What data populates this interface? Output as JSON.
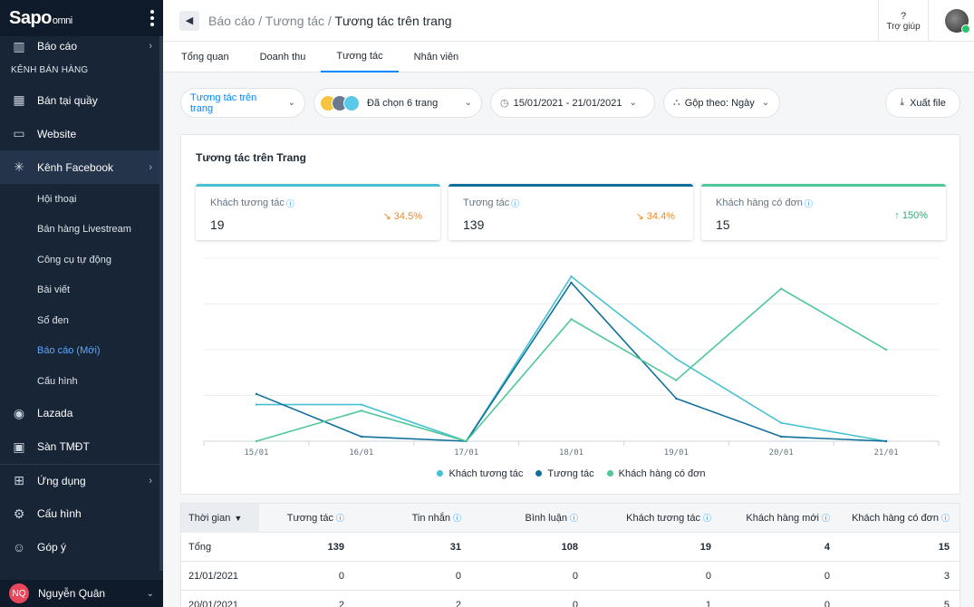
{
  "sidebar": {
    "logo": "Sapo",
    "logo_sub": "omni",
    "top_item": "Báo cáo",
    "section_label": "KÊNH BÁN HÀNG",
    "items": [
      {
        "label": "Bán tại quầy",
        "icon": "store-icon"
      },
      {
        "label": "Website",
        "icon": "monitor-icon"
      },
      {
        "label": "Kênh Facebook",
        "icon": "network-icon"
      }
    ],
    "facebook_sub": [
      "Hội thoại",
      "Bán hàng Livestream",
      "Công cụ tự động",
      "Bài viết",
      "Sổ đen",
      "Báo cáo (Mới)",
      "Cấu hình"
    ],
    "bottom_items": [
      {
        "label": "Lazada",
        "icon": "lazada-icon"
      },
      {
        "label": "Sàn TMĐT",
        "icon": "cart-icon"
      },
      {
        "label": "Ứng dụng",
        "icon": "apps-icon"
      },
      {
        "label": "Cấu hình",
        "icon": "gear-icon"
      },
      {
        "label": "Góp ý",
        "icon": "feedback-icon"
      }
    ],
    "user_initials": "NQ",
    "user_name": "Nguyễn Quân"
  },
  "topbar": {
    "breadcrumb_1": "Báo cáo",
    "sep": " / ",
    "breadcrumb_2": "Tương tác",
    "breadcrumb_3": "Tương tác trên trang",
    "help_icon": "?",
    "help_label": "Trợ giúp"
  },
  "tabs": [
    "Tổng quan",
    "Doanh thu",
    "Tương tác",
    "Nhân viên"
  ],
  "filters": {
    "type": "Tương tác trên trang",
    "pages": "Đã chọn 6 trang",
    "date": "15/01/2021 - 21/01/2021",
    "group": "Gộp theo: Ngày",
    "export": "Xuất file"
  },
  "card": {
    "title": "Tương tác trên Trang",
    "kpis": [
      {
        "label": "Khách tương tác",
        "value": "19",
        "change": "↘ 34.5%",
        "dir": "down",
        "color": "#47c1d1"
      },
      {
        "label": "Tương tác",
        "value": "139",
        "change": "↘ 34.4%",
        "dir": "down",
        "color": "#0f6f9a"
      },
      {
        "label": "Khách hàng có đơn",
        "value": "15",
        "change": "↑ 150%",
        "dir": "up",
        "color": "#4fc79a"
      }
    ]
  },
  "chart_data": {
    "type": "line",
    "categories": [
      "15/01",
      "16/01",
      "17/01",
      "18/01",
      "19/01",
      "20/01",
      "21/01"
    ],
    "series": [
      {
        "name": "Khách tương tác",
        "color": "#47c1d1",
        "values": [
          2.4,
          2.4,
          0,
          10.8,
          5.4,
          1.2,
          0
        ]
      },
      {
        "name": "Tương tác",
        "color": "#0f6f9a",
        "values": [
          3.1,
          0.3,
          0,
          10.4,
          2.8,
          0.3,
          0
        ]
      },
      {
        "name": "Khách hàng có đơn",
        "color": "#4fc79a",
        "values": [
          0,
          2.0,
          0,
          8.0,
          4.0,
          10.0,
          6.0
        ]
      }
    ],
    "ylim": [
      0,
      12
    ],
    "grid": true,
    "legend": "bottom"
  },
  "table": {
    "headers": [
      "Thời gian",
      "Tương tác",
      "Tin nhắn",
      "Bình luận",
      "Khách tương tác",
      "Khách hàng mới",
      "Khách hàng có đơn"
    ],
    "rows": [
      [
        "Tổng",
        "139",
        "31",
        "108",
        "19",
        "4",
        "15"
      ],
      [
        "21/01/2021",
        "0",
        "0",
        "0",
        "0",
        "0",
        "3"
      ],
      [
        "20/01/2021",
        "2",
        "2",
        "0",
        "1",
        "0",
        "5"
      ]
    ]
  }
}
